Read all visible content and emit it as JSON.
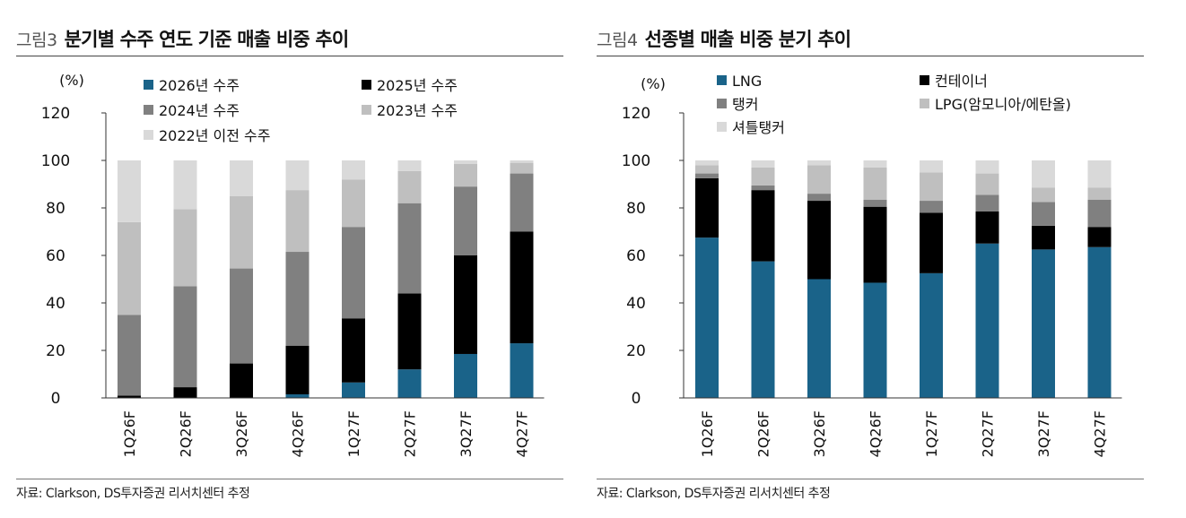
{
  "charts": [
    {
      "fig_label": "그림3",
      "title": "분기별 수주 연도 기준 매출 비중 추이",
      "source": "자료: Clarkson, DS투자증권 리서치센터 추정",
      "chart_data": {
        "type": "bar",
        "stacked": true,
        "unit_label": "(%)",
        "ylim": [
          0,
          120
        ],
        "yticks": [
          0,
          20,
          40,
          60,
          80,
          100,
          120
        ],
        "categories": [
          "1Q26F",
          "2Q26F",
          "3Q26F",
          "4Q26F",
          "1Q27F",
          "2Q27F",
          "3Q27F",
          "4Q27F"
        ],
        "series": [
          {
            "name": "2026년 수주",
            "color": "#1a6389",
            "values": [
              0,
              0,
              0,
              1.5,
              6.5,
              12,
              18.5,
              23
            ]
          },
          {
            "name": "2025년 수주",
            "color": "#000000",
            "values": [
              1,
              4.5,
              14.5,
              20.5,
              27,
              32,
              41.5,
              47
            ]
          },
          {
            "name": "2024년 수주",
            "color": "#808080",
            "values": [
              34,
              42.5,
              40,
              39.5,
              38.5,
              38,
              29,
              24.5
            ]
          },
          {
            "name": "2023년 수주",
            "color": "#bfbfbf",
            "values": [
              39,
              32.5,
              30.5,
              26,
              20,
              13.5,
              9.5,
              4.5
            ]
          },
          {
            "name": "2022년 이전 수주",
            "color": "#d9d9d9",
            "values": [
              26,
              20.5,
              15,
              12.5,
              8,
              4.5,
              1.5,
              1
            ]
          }
        ],
        "legend_position": "top"
      }
    },
    {
      "fig_label": "그림4",
      "title": "선종별 매출 비중 분기 추이",
      "source": "자료: Clarkson, DS투자증권 리서치센터 추정",
      "chart_data": {
        "type": "bar",
        "stacked": true,
        "unit_label": "(%)",
        "ylim": [
          0,
          120
        ],
        "yticks": [
          0,
          20,
          40,
          60,
          80,
          100,
          120
        ],
        "categories": [
          "1Q26F",
          "2Q26F",
          "3Q26F",
          "4Q26F",
          "1Q27F",
          "2Q27F",
          "3Q27F",
          "4Q27F"
        ],
        "series": [
          {
            "name": "LNG",
            "color": "#1a6389",
            "values": [
              67.5,
              57.5,
              50,
              48.5,
              52.5,
              65,
              62.5,
              63.5
            ]
          },
          {
            "name": "컨테이너",
            "color": "#000000",
            "values": [
              25,
              30,
              33,
              32,
              25.5,
              13.5,
              10,
              8.5
            ]
          },
          {
            "name": "탱커",
            "color": "#808080",
            "values": [
              2,
              2,
              3,
              3,
              5,
              7,
              10,
              11.5
            ]
          },
          {
            "name": "LPG(암모니아/에탄올)",
            "color": "#bfbfbf",
            "values": [
              3.5,
              7.5,
              12,
              13.5,
              12,
              9,
              6,
              5
            ]
          },
          {
            "name": "셔틀탱커",
            "color": "#d9d9d9",
            "values": [
              2,
              3,
              2,
              3,
              5,
              5.5,
              11.5,
              11.5
            ]
          }
        ],
        "legend_position": "top"
      }
    }
  ]
}
